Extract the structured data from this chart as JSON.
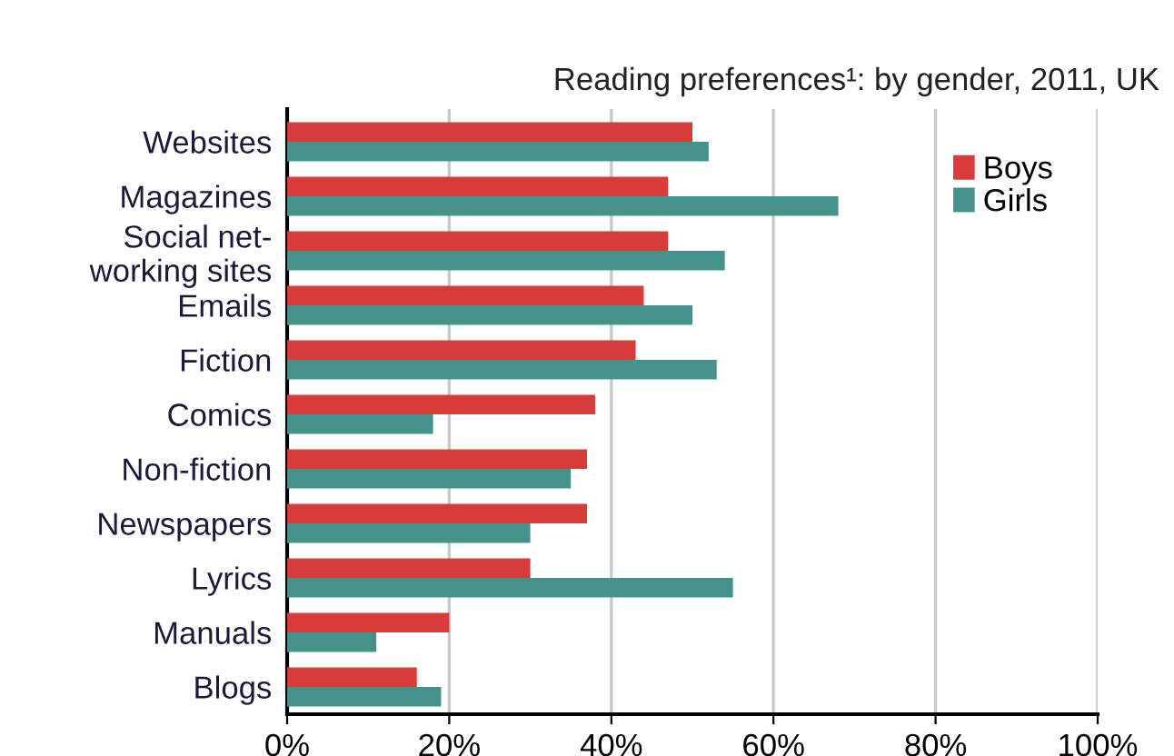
{
  "chart_data": {
    "type": "bar",
    "orientation": "horizontal",
    "title": "Reading preferences¹: by gender, 2011, UK",
    "categories": [
      "Websites",
      "Magazines",
      "Social net-\nworking sites",
      "Emails",
      "Fiction",
      "Comics",
      "Non-fiction",
      "Newspapers",
      "Lyrics",
      "Manuals",
      "Blogs"
    ],
    "series": [
      {
        "name": "Boys",
        "color": "#d93a3a",
        "values": [
          50,
          47,
          47,
          44,
          43,
          38,
          37,
          37,
          30,
          20,
          16
        ]
      },
      {
        "name": "Girls",
        "color": "#45928c",
        "values": [
          52,
          68,
          54,
          50,
          53,
          18,
          35,
          30,
          55,
          11,
          19
        ]
      }
    ],
    "xlim": [
      0,
      100
    ],
    "xticks": [
      {
        "value": 0,
        "label": "0%"
      },
      {
        "value": 20,
        "label": "20%"
      },
      {
        "value": 40,
        "label": "40%"
      },
      {
        "value": 60,
        "label": "60%"
      },
      {
        "value": 80,
        "label": "80%"
      },
      {
        "value": 100,
        "label": "100%"
      }
    ],
    "grid": "x",
    "legend": "top right"
  }
}
